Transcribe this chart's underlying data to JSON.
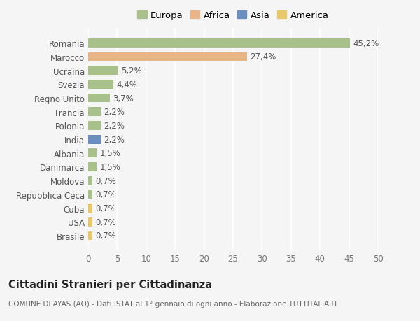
{
  "countries": [
    "Romania",
    "Marocco",
    "Ucraina",
    "Svezia",
    "Regno Unito",
    "Francia",
    "Polonia",
    "India",
    "Albania",
    "Danimarca",
    "Moldova",
    "Repubblica Ceca",
    "Cuba",
    "USA",
    "Brasile"
  ],
  "values": [
    45.2,
    27.4,
    5.2,
    4.4,
    3.7,
    2.2,
    2.2,
    2.2,
    1.5,
    1.5,
    0.7,
    0.7,
    0.7,
    0.7,
    0.7
  ],
  "labels": [
    "45,2%",
    "27,4%",
    "5,2%",
    "4,4%",
    "3,7%",
    "2,2%",
    "2,2%",
    "2,2%",
    "1,5%",
    "1,5%",
    "0,7%",
    "0,7%",
    "0,7%",
    "0,7%",
    "0,7%"
  ],
  "continents": [
    "Europa",
    "Africa",
    "Europa",
    "Europa",
    "Europa",
    "Europa",
    "Europa",
    "Asia",
    "Europa",
    "Europa",
    "Europa",
    "Europa",
    "America",
    "America",
    "America"
  ],
  "continent_colors": {
    "Europa": "#a8c08a",
    "Africa": "#e8b48a",
    "Asia": "#6a8fbf",
    "America": "#e8c86a"
  },
  "legend_entries": [
    "Europa",
    "Africa",
    "Asia",
    "America"
  ],
  "legend_colors": [
    "#a8c08a",
    "#e8b48a",
    "#6a8fbf",
    "#e8c86a"
  ],
  "xlim": [
    0,
    50
  ],
  "xticks": [
    0,
    5,
    10,
    15,
    20,
    25,
    30,
    35,
    40,
    45,
    50
  ],
  "background_color": "#f5f5f5",
  "title": "Cittadini Stranieri per Cittadinanza",
  "subtitle": "COMUNE DI AYAS (AO) - Dati ISTAT al 1° gennaio di ogni anno - Elaborazione TUTTITALIA.IT",
  "bar_height": 0.65,
  "grid_color": "#ffffff",
  "label_fontsize": 8.5,
  "tick_fontsize": 8.5,
  "legend_fontsize": 9.5
}
